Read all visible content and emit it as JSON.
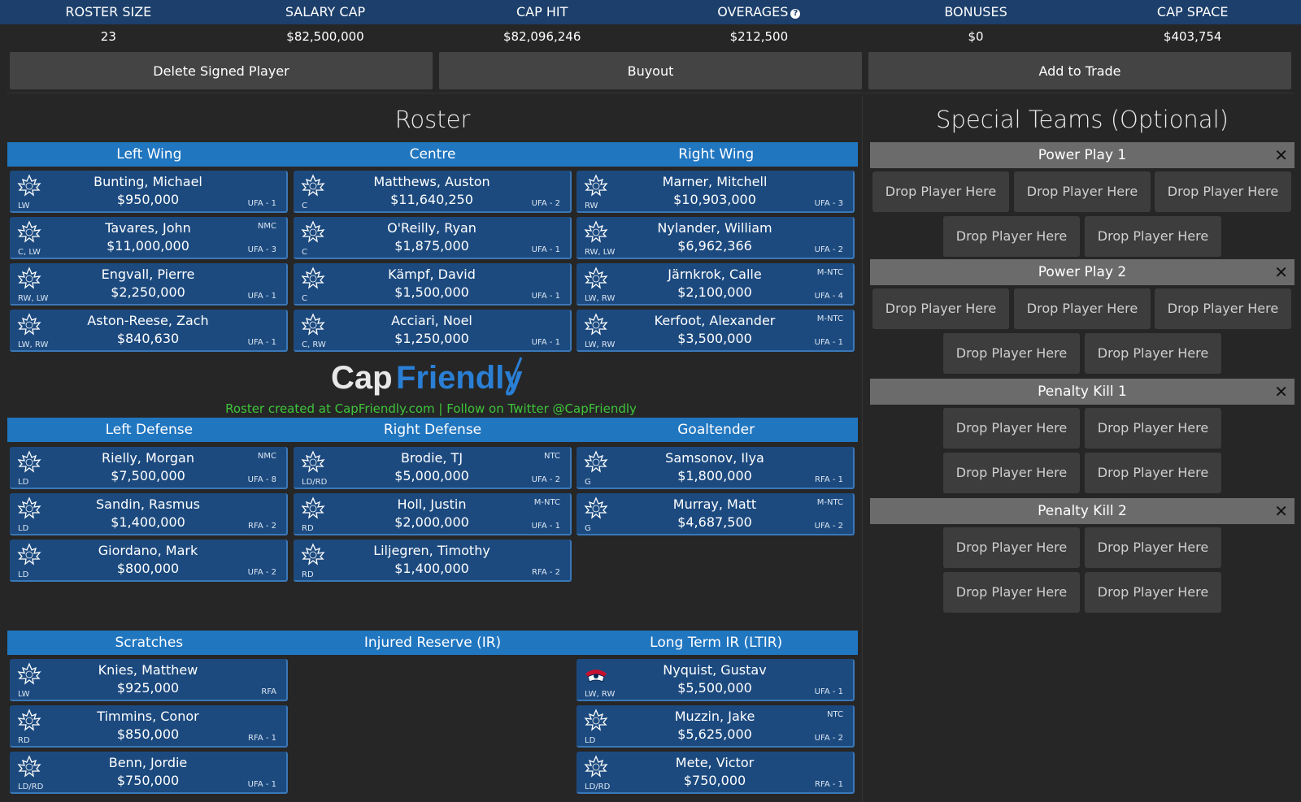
{
  "stats": {
    "headers": [
      "ROSTER SIZE",
      "SALARY CAP",
      "CAP HIT",
      "OVERAGES",
      "BONUSES",
      "CAP SPACE"
    ],
    "values": [
      "23",
      "$82,500,000",
      "$82,096,246",
      "$212,500",
      "$0",
      "$403,754"
    ],
    "overages_help_icon": "question-circle-icon"
  },
  "actions": {
    "delete": "Delete Signed Player",
    "buyout": "Buyout",
    "trade": "Add to Trade"
  },
  "roster": {
    "title": "Roster",
    "forward_headers": [
      "Left Wing",
      "Centre",
      "Right Wing"
    ],
    "defense_headers": [
      "Left Defense",
      "Right Defense",
      "Goaltender"
    ],
    "reserve_headers": [
      "Scratches",
      "Injured Reserve (IR)",
      "Long Term IR (LTIR)"
    ],
    "left_wing": [
      {
        "name": "Bunting, Michael",
        "salary": "$950,000",
        "pos": "LW",
        "tag": "",
        "status": "UFA - 1",
        "logo": "maple-leaf-logo"
      },
      {
        "name": "Tavares, John",
        "salary": "$11,000,000",
        "pos": "C, LW",
        "tag": "NMC",
        "status": "UFA - 3",
        "logo": "maple-leaf-logo"
      },
      {
        "name": "Engvall, Pierre",
        "salary": "$2,250,000",
        "pos": "RW, LW",
        "tag": "",
        "status": "UFA - 1",
        "logo": "maple-leaf-logo"
      },
      {
        "name": "Aston-Reese, Zach",
        "salary": "$840,630",
        "pos": "LW, RW",
        "tag": "",
        "status": "UFA - 1",
        "logo": "maple-leaf-logo"
      }
    ],
    "centre": [
      {
        "name": "Matthews, Auston",
        "salary": "$11,640,250",
        "pos": "C",
        "tag": "",
        "status": "UFA - 2",
        "logo": "maple-leaf-logo"
      },
      {
        "name": "O'Reilly, Ryan",
        "salary": "$1,875,000",
        "pos": "C",
        "tag": "",
        "status": "UFA - 1",
        "logo": "maple-leaf-logo"
      },
      {
        "name": "Kämpf, David",
        "salary": "$1,500,000",
        "pos": "C",
        "tag": "",
        "status": "UFA - 1",
        "logo": "maple-leaf-logo"
      },
      {
        "name": "Acciari, Noel",
        "salary": "$1,250,000",
        "pos": "C, RW",
        "tag": "",
        "status": "UFA - 1",
        "logo": "maple-leaf-logo"
      }
    ],
    "right_wing": [
      {
        "name": "Marner, Mitchell",
        "salary": "$10,903,000",
        "pos": "RW",
        "tag": "",
        "status": "UFA - 3",
        "logo": "maple-leaf-logo"
      },
      {
        "name": "Nylander, William",
        "salary": "$6,962,366",
        "pos": "RW, LW",
        "tag": "",
        "status": "UFA - 2",
        "logo": "maple-leaf-logo"
      },
      {
        "name": "Järnkrok, Calle",
        "salary": "$2,100,000",
        "pos": "LW, RW",
        "tag": "M-NTC",
        "status": "UFA - 4",
        "logo": "maple-leaf-logo"
      },
      {
        "name": "Kerfoot, Alexander",
        "salary": "$3,500,000",
        "pos": "LW, RW",
        "tag": "M-NTC",
        "status": "UFA - 1",
        "logo": "maple-leaf-logo"
      }
    ],
    "left_defense": [
      {
        "name": "Rielly, Morgan",
        "salary": "$7,500,000",
        "pos": "LD",
        "tag": "NMC",
        "status": "UFA - 8",
        "logo": "maple-leaf-logo"
      },
      {
        "name": "Sandin, Rasmus",
        "salary": "$1,400,000",
        "pos": "LD",
        "tag": "",
        "status": "RFA - 2",
        "logo": "maple-leaf-logo"
      },
      {
        "name": "Giordano, Mark",
        "salary": "$800,000",
        "pos": "LD",
        "tag": "",
        "status": "UFA - 2",
        "logo": "maple-leaf-logo"
      }
    ],
    "right_defense": [
      {
        "name": "Brodie, TJ",
        "salary": "$5,000,000",
        "pos": "LD/RD",
        "tag": "NTC",
        "status": "UFA - 2",
        "logo": "maple-leaf-logo"
      },
      {
        "name": "Holl, Justin",
        "salary": "$2,000,000",
        "pos": "RD",
        "tag": "M-NTC",
        "status": "UFA - 1",
        "logo": "maple-leaf-logo"
      },
      {
        "name": "Liljegren, Timothy",
        "salary": "$1,400,000",
        "pos": "RD",
        "tag": "",
        "status": "RFA - 2",
        "logo": "maple-leaf-logo"
      }
    ],
    "goaltender": [
      {
        "name": "Samsonov, Ilya",
        "salary": "$1,800,000",
        "pos": "G",
        "tag": "",
        "status": "RFA - 1",
        "logo": "maple-leaf-logo"
      },
      {
        "name": "Murray, Matt",
        "salary": "$4,687,500",
        "pos": "G",
        "tag": "M-NTC",
        "status": "UFA - 2",
        "logo": "maple-leaf-logo"
      }
    ],
    "scratches": [
      {
        "name": "Knies, Matthew",
        "salary": "$925,000",
        "pos": "LW",
        "tag": "",
        "status": "RFA",
        "logo": "maple-leaf-logo"
      },
      {
        "name": "Timmins, Conor",
        "salary": "$850,000",
        "pos": "RD",
        "tag": "",
        "status": "RFA - 1",
        "logo": "maple-leaf-logo"
      },
      {
        "name": "Benn, Jordie",
        "salary": "$750,000",
        "pos": "LD/RD",
        "tag": "",
        "status": "UFA - 1",
        "logo": "maple-leaf-logo"
      }
    ],
    "ltir": [
      {
        "name": "Nyquist, Gustav",
        "salary": "$5,500,000",
        "pos": "LW, RW",
        "tag": "",
        "status": "UFA - 1",
        "logo": "blue-jackets-logo"
      },
      {
        "name": "Muzzin, Jake",
        "salary": "$5,625,000",
        "pos": "LD",
        "tag": "NTC",
        "status": "UFA - 2",
        "logo": "maple-leaf-logo"
      },
      {
        "name": "Mete, Victor",
        "salary": "$750,000",
        "pos": "LD/RD",
        "tag": "",
        "status": "RFA - 1",
        "logo": "maple-leaf-logo"
      }
    ]
  },
  "watermark": {
    "cap": "Cap",
    "friendly": "Friendly",
    "credit": "Roster created at CapFriendly.com | Follow on Twitter @CapFriendly"
  },
  "special_teams": {
    "title": "Special Teams (Optional)",
    "drop_label": "Drop Player Here",
    "close_icon": "close-icon",
    "groups": [
      {
        "name": "Power Play 1",
        "slots": 5
      },
      {
        "name": "Power Play 2",
        "slots": 5
      },
      {
        "name": "Penalty Kill 1",
        "slots": 4
      },
      {
        "name": "Penalty Kill 2",
        "slots": 4
      }
    ]
  },
  "colors": {
    "header_bar": "#1c3f6b",
    "section_header": "#2176c0",
    "card": "#1c4a7f",
    "st_header": "#6b6b6b",
    "credit": "#3ec43a"
  }
}
